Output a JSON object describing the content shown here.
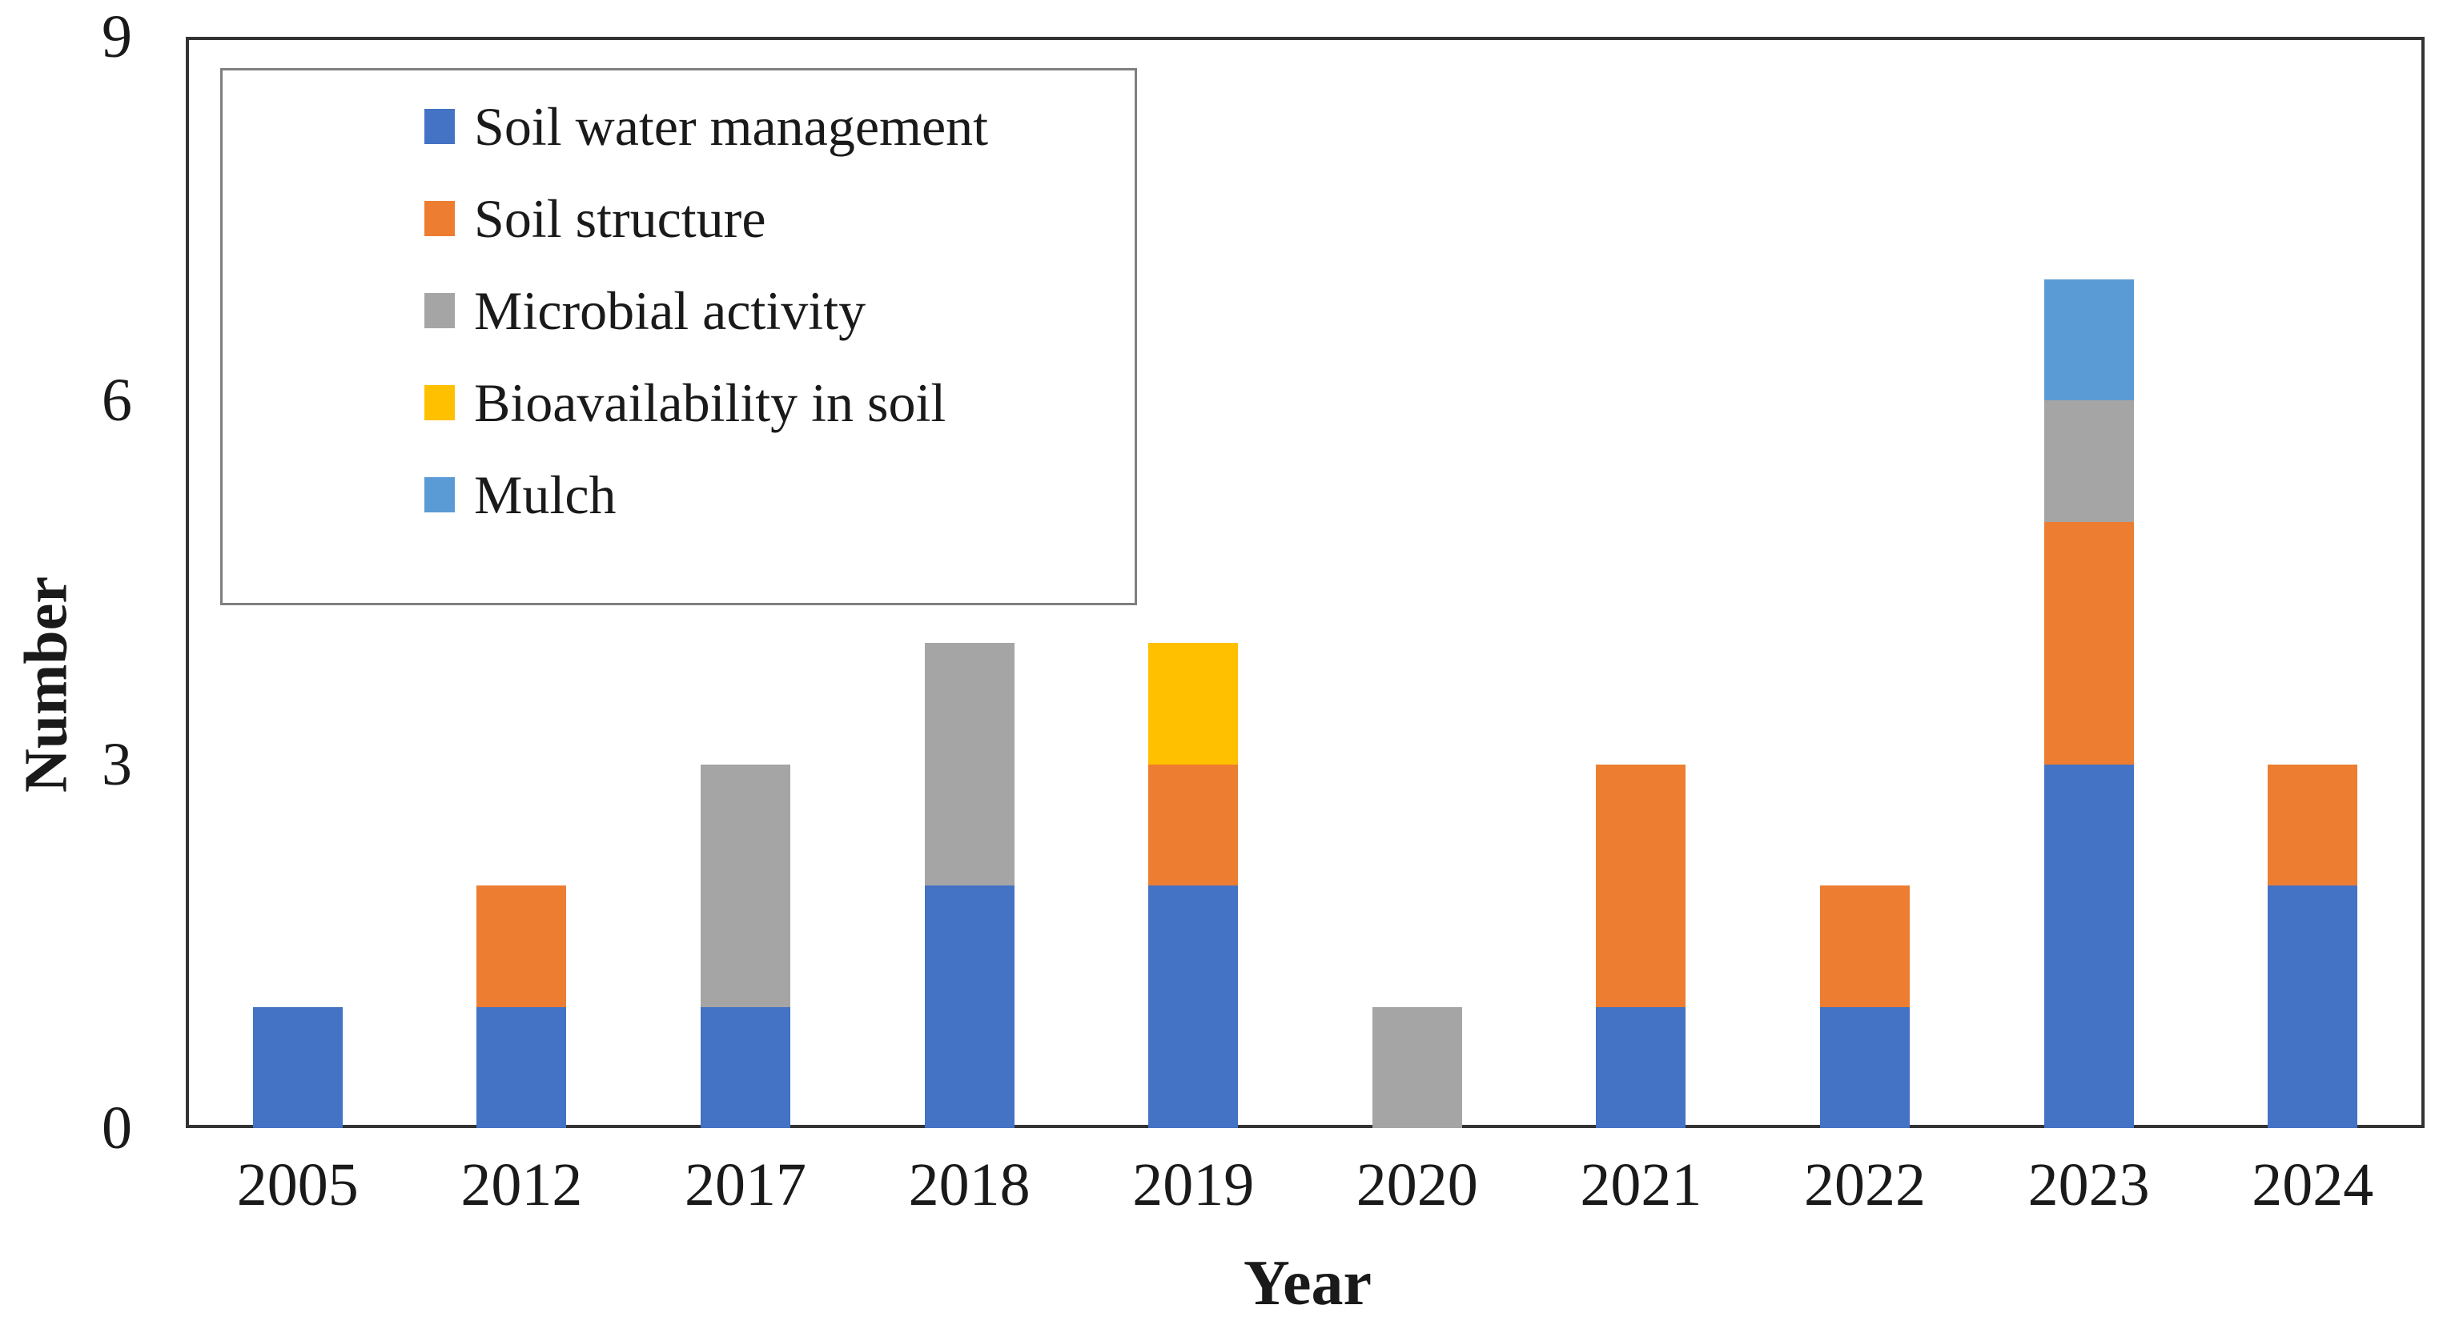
{
  "figure": {
    "background_color": "#ffffff",
    "axis_color": "#333333",
    "text_color": "#1a1a1a",
    "legend_border_color": "#7f7f7f"
  },
  "chart_data": {
    "type": "bar",
    "stacked": true,
    "title": "",
    "xlabel": "Year",
    "ylabel": "Number",
    "categories": [
      "2005",
      "2012",
      "2017",
      "2018",
      "2019",
      "2020",
      "2021",
      "2022",
      "2023",
      "2024"
    ],
    "series": [
      {
        "name": "Soil water management",
        "color": "#4472C4",
        "values": [
          1,
          1,
          1,
          2,
          2,
          0,
          1,
          1,
          3,
          2
        ]
      },
      {
        "name": "Soil structure",
        "color": "#ED7D31",
        "values": [
          0,
          1,
          0,
          0,
          1,
          0,
          2,
          1,
          2,
          1
        ]
      },
      {
        "name": "Microbial activity",
        "color": "#A5A5A5",
        "values": [
          0,
          0,
          2,
          2,
          0,
          1,
          0,
          0,
          1,
          0
        ]
      },
      {
        "name": "Bioavailability in soil",
        "color": "#FFC000",
        "values": [
          0,
          0,
          0,
          0,
          1,
          0,
          0,
          0,
          0,
          0
        ]
      },
      {
        "name": "Mulch",
        "color": "#5B9BD5",
        "values": [
          0,
          0,
          0,
          0,
          0,
          0,
          0,
          0,
          1,
          0
        ]
      }
    ],
    "totals": [
      1,
      2,
      3,
      4,
      4,
      1,
      3,
      2,
      7,
      3
    ],
    "ylim": [
      0,
      9
    ],
    "yticks": [
      0,
      3,
      6,
      9
    ],
    "grid": false,
    "legend_position": "top-left"
  }
}
